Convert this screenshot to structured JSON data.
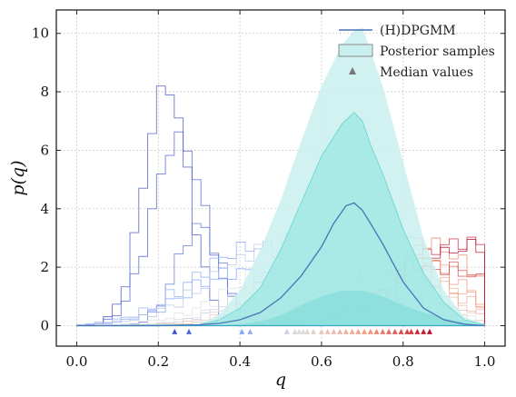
{
  "chart_data": {
    "type": "line",
    "xlabel": "q",
    "ylabel": "p(q)",
    "xlim": [
      -0.05,
      1.05
    ],
    "ylim": [
      -0.7,
      10.8
    ],
    "xticks": [
      0.0,
      0.2,
      0.4,
      0.6,
      0.8,
      1.0
    ],
    "xtick_labels": [
      "0.0",
      "0.2",
      "0.4",
      "0.6",
      "0.8",
      "1.0"
    ],
    "yticks": [
      0,
      2,
      4,
      6,
      8,
      10
    ],
    "ytick_labels": [
      "0",
      "2",
      "4",
      "6",
      "8",
      "10"
    ],
    "grid": true,
    "legend_position": "top-right",
    "legend": {
      "model_label": "(H)DPGMM",
      "samples_label": "Posterior samples",
      "median_label": "Median values"
    },
    "colors": {
      "model_line": "#4a74b4",
      "band_outer": "#c9f0ee",
      "band_inner": "#9fe6e4",
      "band_edge": "#5fd6d2",
      "cool": "#3b4cc0",
      "warm": "#b40426"
    },
    "model_curve": {
      "x": [
        0.0,
        0.1,
        0.2,
        0.3,
        0.35,
        0.4,
        0.45,
        0.5,
        0.55,
        0.6,
        0.63,
        0.66,
        0.68,
        0.7,
        0.72,
        0.75,
        0.8,
        0.85,
        0.9,
        0.95,
        1.0
      ],
      "y": [
        0.0,
        0.0,
        0.0,
        0.03,
        0.08,
        0.2,
        0.45,
        0.95,
        1.7,
        2.7,
        3.5,
        4.1,
        4.2,
        3.95,
        3.5,
        2.8,
        1.5,
        0.6,
        0.2,
        0.05,
        0.0
      ]
    },
    "band_outer": {
      "x": [
        0.0,
        0.3,
        0.35,
        0.4,
        0.45,
        0.5,
        0.55,
        0.6,
        0.65,
        0.68,
        0.7,
        0.72,
        0.75,
        0.8,
        0.85,
        0.9,
        0.95,
        1.0
      ],
      "y": [
        0.0,
        0.05,
        0.4,
        1.2,
        2.6,
        4.3,
        6.3,
        8.2,
        9.6,
        10.1,
        10.2,
        9.4,
        8.2,
        5.6,
        3.0,
        1.2,
        0.3,
        0.05
      ]
    },
    "band_mid": {
      "x": [
        0.0,
        0.3,
        0.35,
        0.4,
        0.45,
        0.5,
        0.55,
        0.6,
        0.65,
        0.68,
        0.7,
        0.72,
        0.75,
        0.8,
        0.85,
        0.9,
        0.95,
        1.0
      ],
      "y": [
        0.0,
        0.03,
        0.2,
        0.6,
        1.3,
        2.6,
        4.2,
        5.8,
        6.9,
        7.3,
        7.0,
        6.2,
        5.2,
        3.3,
        1.8,
        0.8,
        0.2,
        0.03
      ]
    },
    "band_low": {
      "x": [
        0.0,
        0.35,
        0.4,
        0.45,
        0.5,
        0.55,
        0.6,
        0.65,
        0.7,
        0.75,
        0.8,
        0.85,
        0.9,
        0.95,
        1.0
      ],
      "y": [
        0.0,
        0.0,
        0.05,
        0.15,
        0.35,
        0.7,
        1.0,
        1.2,
        1.2,
        1.0,
        0.7,
        0.45,
        0.25,
        0.1,
        0.0
      ]
    },
    "posterior_sample_peaks": [
      0.22,
      0.25,
      0.3,
      0.4,
      0.44,
      0.52,
      0.55,
      0.58,
      0.6,
      0.63,
      0.66,
      0.68,
      0.72,
      0.75,
      0.78,
      0.8,
      0.83,
      0.86,
      0.9,
      0.95,
      0.98
    ],
    "median_values": [
      0.24,
      0.275,
      0.405,
      0.425,
      0.515,
      0.535,
      0.545,
      0.555,
      0.565,
      0.58,
      0.6,
      0.615,
      0.63,
      0.645,
      0.66,
      0.675,
      0.69,
      0.705,
      0.72,
      0.735,
      0.75,
      0.765,
      0.78,
      0.795,
      0.81,
      0.82,
      0.835,
      0.85,
      0.865
    ]
  }
}
